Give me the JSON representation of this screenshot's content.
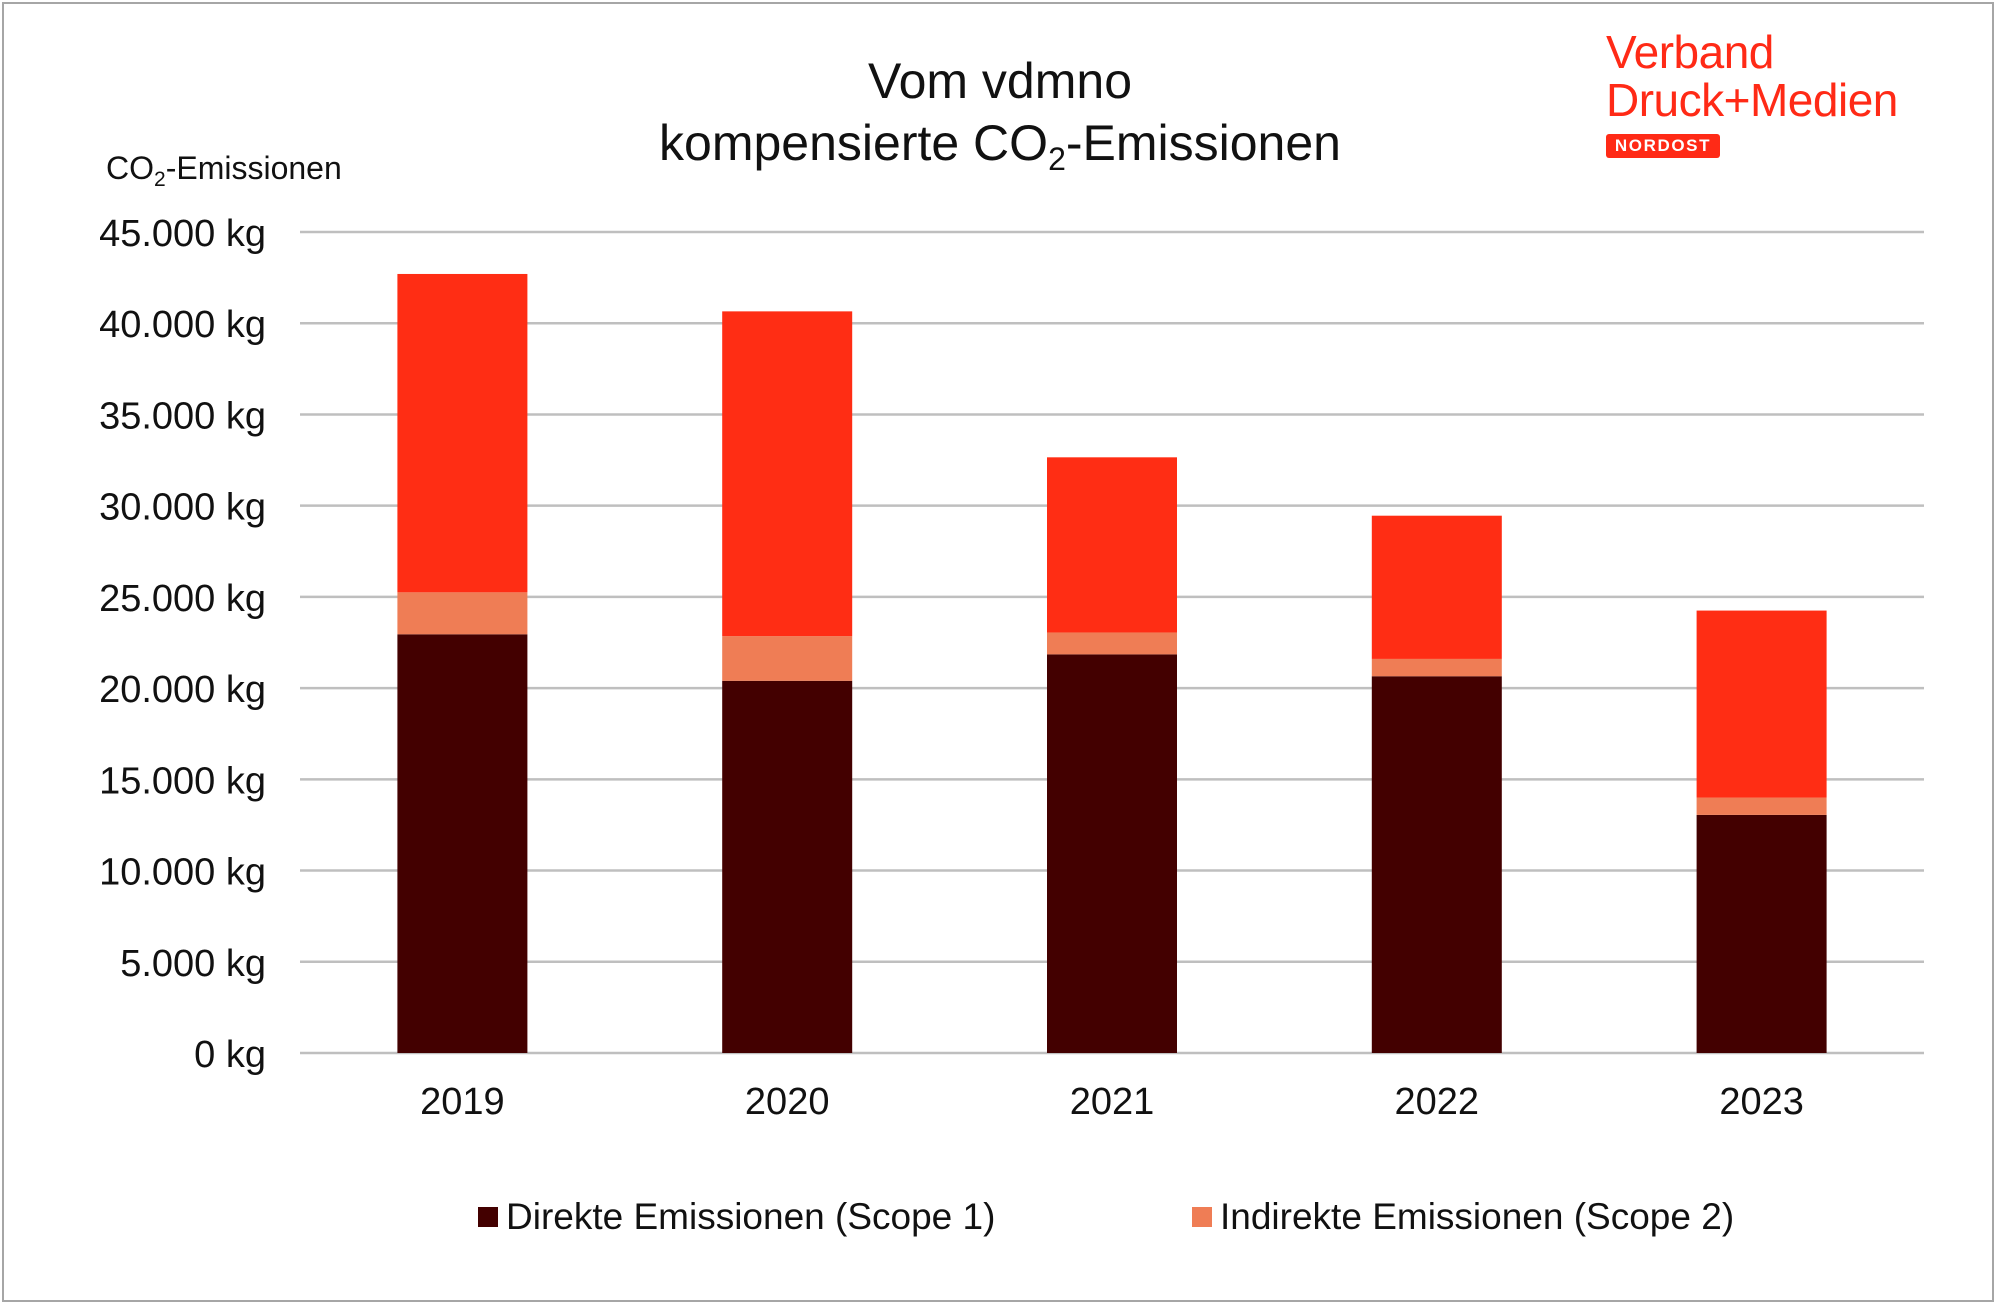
{
  "title": {
    "line1": "Vom vdmno",
    "line2_pre": "kompensierte CO",
    "line2_sub": "2",
    "line2_post": "-Emissionen"
  },
  "ylabel": {
    "pre": "CO",
    "sub": "2",
    "post": "-Emissionen"
  },
  "logo": {
    "line1": "Verband",
    "line2": "Druck+Medien",
    "badge": "NORDOST"
  },
  "colors": {
    "direct": "#430000",
    "indirect": "#ef7d55",
    "other": "#ff2d14",
    "grid": "#bfbfbf",
    "logo": "#ff2a16"
  },
  "legend": [
    {
      "label": "Direkte Emissionen (Scope 1)",
      "color": "#430000"
    },
    {
      "label": "Indirekte Emissionen (Scope 2)",
      "color": "#ef7d55"
    }
  ],
  "chart_data": {
    "type": "bar",
    "stacked": true,
    "categories": [
      "2019",
      "2020",
      "2021",
      "2022",
      "2023"
    ],
    "series": [
      {
        "name": "Direkte Emissionen (Scope 1)",
        "values": [
          22950,
          20400,
          21850,
          20650,
          13050
        ],
        "color": "#430000"
      },
      {
        "name": "Indirekte Emissionen (Scope 2)",
        "values": [
          2300,
          2450,
          1200,
          950,
          950
        ],
        "color": "#ef7d55"
      },
      {
        "values": [
          17450,
          17800,
          9600,
          7850,
          10250
        ],
        "color": "#ff2d14"
      }
    ],
    "ylim": [
      0,
      45000
    ],
    "yticks": [
      0,
      5000,
      10000,
      15000,
      20000,
      25000,
      30000,
      35000,
      40000,
      45000
    ],
    "ytick_labels": [
      "0 kg",
      "5.000 kg",
      "10.000 kg",
      "15.000 kg",
      "20.000 kg",
      "25.000 kg",
      "30.000 kg",
      "35.000 kg",
      "40.000 kg",
      "45.000 kg"
    ],
    "grid": true,
    "legend_position": "bottom"
  }
}
